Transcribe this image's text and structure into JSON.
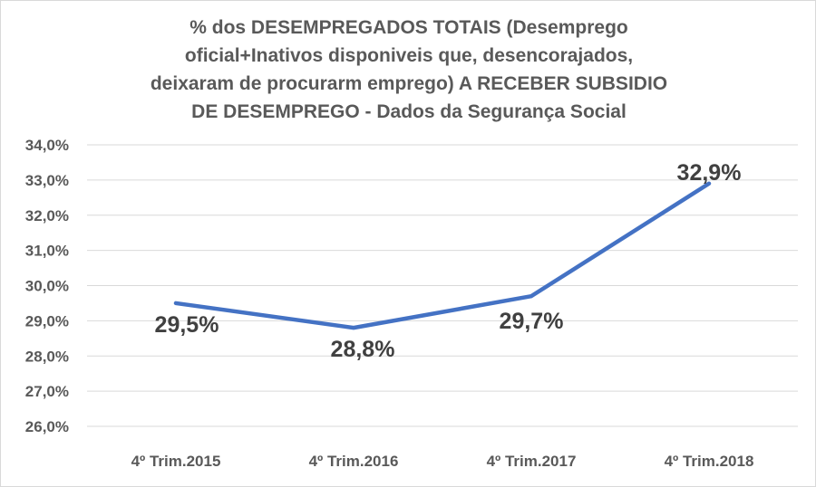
{
  "chart_data": {
    "type": "line",
    "title_lines": [
      "% dos DESEMPREGADOS TOTAIS (Desemprego",
      "oficial+Inativos  disponiveis que, desencorajados,",
      "deixaram de procurarm emprego) A RECEBER SUBSIDIO",
      "DE DESEMPREGO - Dados da Segurança Social"
    ],
    "categories": [
      "4º Trim.2015",
      "4º Trim.2016",
      "4º Trim.2017",
      "4º Trim.2018"
    ],
    "series": [
      {
        "values": [
          29.5,
          28.8,
          29.7,
          32.9
        ],
        "data_labels": [
          "29,5%",
          "28,8%",
          "29,7%",
          "32,9%"
        ],
        "color": "#4472c4"
      }
    ],
    "ylim": [
      26,
      34
    ],
    "ytick_labels": [
      "26,0%",
      "27,0%",
      "28,0%",
      "29,0%",
      "30,0%",
      "31,0%",
      "32,0%",
      "33,0%",
      "34,0%"
    ],
    "grid": true,
    "legend": false
  }
}
